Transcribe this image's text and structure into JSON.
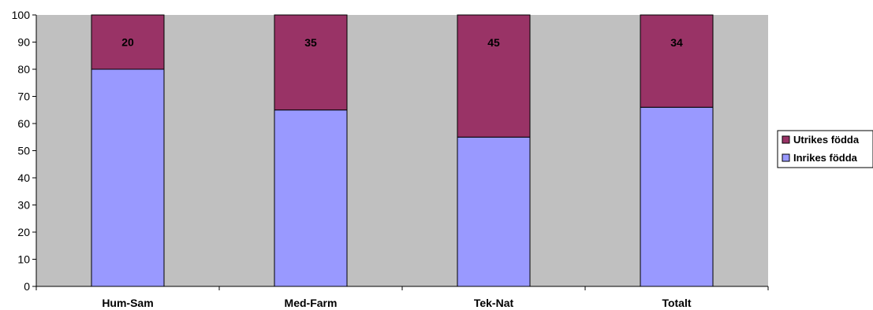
{
  "chart_data": {
    "type": "bar",
    "stacked": true,
    "categories": [
      "Hum-Sam",
      "Med-Farm",
      "Tek-Nat",
      "Totalt"
    ],
    "series": [
      {
        "name": "Inrikes födda",
        "values": [
          80,
          65,
          55,
          66
        ],
        "color": "#9999ff"
      },
      {
        "name": "Utrikes födda",
        "values": [
          20,
          35,
          45,
          34
        ],
        "color": "#993366"
      }
    ],
    "data_labels": [
      "20",
      "35",
      "45",
      "34"
    ],
    "ylim": [
      0,
      100
    ],
    "yticks": [
      0,
      10,
      20,
      30,
      40,
      50,
      60,
      70,
      80,
      90,
      100
    ],
    "grid": false,
    "plot_background": "#c0c0c0",
    "legend_position": "right"
  }
}
